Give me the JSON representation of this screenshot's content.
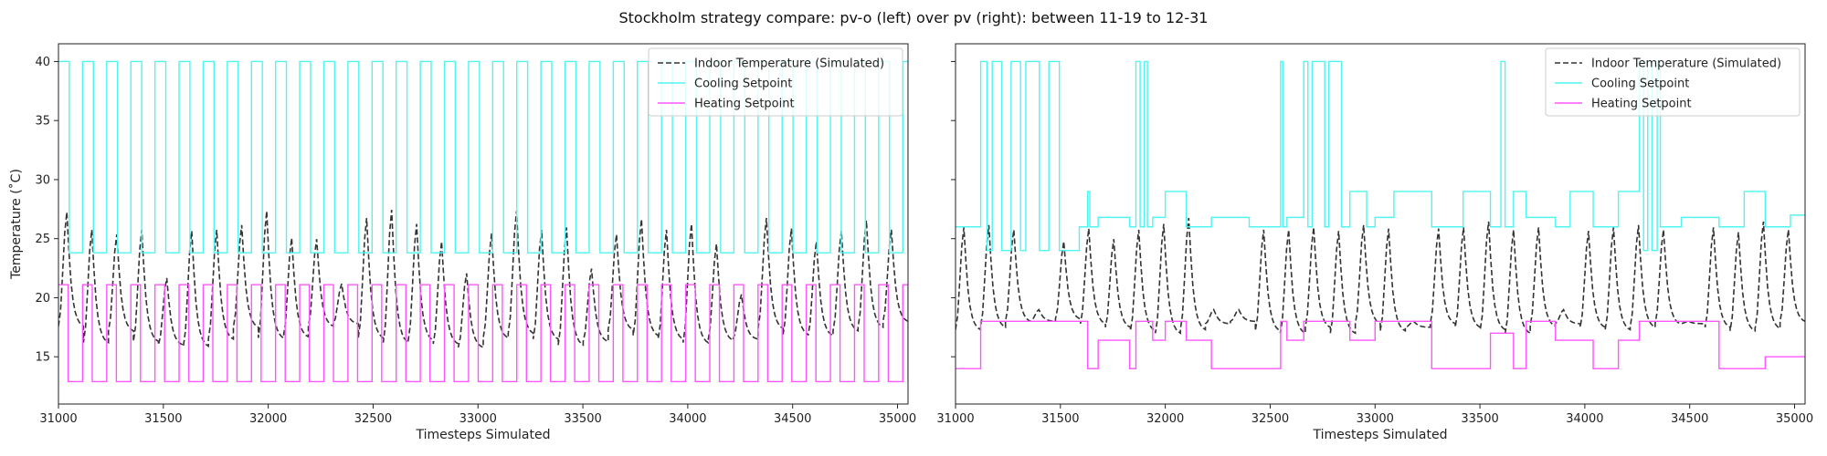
{
  "figure": {
    "title": "Stockholm strategy compare: pv-o (left) over pv (right): between 11-19 to 12-31"
  },
  "chart_data": [
    {
      "type": "line",
      "panel": "left",
      "xlabel": "Timesteps Simulated",
      "ylabel": "Temperature (˚C)",
      "xlim": [
        31000,
        35050
      ],
      "ylim": [
        11,
        41.5
      ],
      "xticks": [
        "31000",
        "31500",
        "32000",
        "32500",
        "33000",
        "33500",
        "34000",
        "34500",
        "35000"
      ],
      "yticks": [
        "15",
        "20",
        "25",
        "30",
        "35",
        "40"
      ],
      "grid": false,
      "legend_position": "top-right",
      "series": [
        {
          "name": "Indoor Temperature (Simulated)",
          "color": "#333333",
          "style": "dashed",
          "mode": "oscillating",
          "peaks": [
            27.3,
            25.8,
            25.4,
            25.8,
            21.7,
            25.7,
            25.8,
            26.2,
            27.4,
            25.1,
            25.0,
            21.2,
            26.8,
            27.5,
            26.3,
            24.8,
            22.1,
            25.5,
            27.4,
            25.8,
            26.0,
            22.5,
            25.4,
            26.7,
            25.8,
            26.3,
            24.6,
            20.3,
            26.8,
            25.9,
            24.8,
            25.7,
            26.6,
            25.8
          ],
          "troughs": [
            17.6,
            16.2,
            17.2,
            16.3,
            16.0,
            15.9,
            16.5,
            17.5,
            16.6,
            16.7,
            17.6,
            17.8,
            16.6,
            16.2,
            16.4,
            16.1,
            15.8,
            16.6,
            17.0,
            16.5,
            16.0,
            16.3,
            17.3,
            16.8,
            16.5,
            16.2,
            16.4,
            16.5,
            17.4,
            16.9,
            16.8,
            17.2,
            17.5,
            18.0
          ],
          "x_start": 31000,
          "x_end": 35050
        },
        {
          "name": "Cooling Setpoint",
          "color": "#4ff5f0",
          "style": "solid",
          "mode": "square",
          "high": 40,
          "low": 23.8,
          "period": 115,
          "duty": 0.45,
          "x_start": 31000,
          "x_end": 35050
        },
        {
          "name": "Heating Setpoint",
          "color": "#ff55ff",
          "style": "solid",
          "mode": "square",
          "high": 21.1,
          "low": 12.9,
          "period": 115,
          "duty": 0.4,
          "x_start": 31000,
          "x_end": 35050
        }
      ]
    },
    {
      "type": "line",
      "panel": "right",
      "xlabel": "Timesteps Simulated",
      "ylabel": "",
      "xlim": [
        31000,
        35050
      ],
      "ylim": [
        11,
        41.5
      ],
      "xticks": [
        "31000",
        "31500",
        "32000",
        "32500",
        "33000",
        "33500",
        "34000",
        "34500",
        "35000"
      ],
      "yticks": [],
      "grid": false,
      "legend_position": "top-right",
      "series": [
        {
          "name": "Indoor Temperature (Simulated)",
          "color": "#333333",
          "style": "dashed",
          "mode": "oscillating",
          "peaks": [
            26.0,
            26.2,
            25.8,
            19.0,
            24.8,
            25.9,
            25.0,
            25.8,
            26.3,
            26.8,
            19.0,
            19.0,
            25.8,
            25.8,
            26.0,
            25.7,
            26.2,
            25.9,
            18.0,
            25.9,
            26.0,
            26.5,
            25.8,
            26.0,
            19.0,
            25.7,
            26.0,
            26.2,
            25.8,
            18.0,
            26.0,
            25.6,
            26.5,
            25.8
          ],
          "troughs": [
            17.3,
            17.5,
            18.0,
            18.0,
            18.2,
            17.8,
            17.5,
            17.2,
            17.0,
            17.3,
            17.8,
            18.0,
            17.2,
            17.0,
            17.5,
            17.0,
            17.8,
            17.2,
            17.5,
            17.8,
            17.5,
            17.3,
            17.0,
            17.6,
            17.8,
            17.5,
            17.3,
            17.5,
            17.8,
            17.8,
            17.5,
            17.2,
            17.4,
            18.0
          ],
          "x_start": 31000,
          "x_end": 35050
        },
        {
          "name": "Cooling Setpoint",
          "color": "#4ff5f0",
          "style": "solid",
          "mode": "steps",
          "points": [
            [
              31000,
              26
            ],
            [
              31120,
              26
            ],
            [
              31120,
              40
            ],
            [
              31150,
              40
            ],
            [
              31150,
              24
            ],
            [
              31175,
              24
            ],
            [
              31175,
              40
            ],
            [
              31220,
              40
            ],
            [
              31220,
              24
            ],
            [
              31265,
              24
            ],
            [
              31265,
              40
            ],
            [
              31310,
              40
            ],
            [
              31310,
              24
            ],
            [
              31335,
              24
            ],
            [
              31335,
              40
            ],
            [
              31400,
              40
            ],
            [
              31400,
              24
            ],
            [
              31445,
              24
            ],
            [
              31445,
              40
            ],
            [
              31495,
              40
            ],
            [
              31495,
              24
            ],
            [
              31590,
              24
            ],
            [
              31590,
              26
            ],
            [
              31630,
              26
            ],
            [
              31630,
              29
            ],
            [
              31640,
              29
            ],
            [
              31640,
              26
            ],
            [
              31680,
              26
            ],
            [
              31680,
              26.8
            ],
            [
              31830,
              26.8
            ],
            [
              31830,
              26
            ],
            [
              31860,
              26
            ],
            [
              31860,
              40
            ],
            [
              31880,
              40
            ],
            [
              31880,
              26
            ],
            [
              31900,
              26
            ],
            [
              31900,
              40
            ],
            [
              31915,
              40
            ],
            [
              31915,
              26
            ],
            [
              31940,
              26
            ],
            [
              31940,
              26.8
            ],
            [
              32000,
              26.8
            ],
            [
              32000,
              29
            ],
            [
              32100,
              29
            ],
            [
              32100,
              26
            ],
            [
              32220,
              26
            ],
            [
              32220,
              26.8
            ],
            [
              32400,
              26.8
            ],
            [
              32400,
              26
            ],
            [
              32550,
              26
            ],
            [
              32550,
              40
            ],
            [
              32560,
              40
            ],
            [
              32560,
              26
            ],
            [
              32580,
              26
            ],
            [
              32580,
              26.8
            ],
            [
              32660,
              26.8
            ],
            [
              32660,
              40
            ],
            [
              32680,
              40
            ],
            [
              32680,
              26
            ],
            [
              32700,
              26
            ],
            [
              32700,
              40
            ],
            [
              32760,
              40
            ],
            [
              32760,
              26
            ],
            [
              32780,
              26
            ],
            [
              32780,
              40
            ],
            [
              32840,
              40
            ],
            [
              32840,
              26
            ],
            [
              32880,
              26
            ],
            [
              32880,
              29
            ],
            [
              32960,
              29
            ],
            [
              32960,
              26
            ],
            [
              33000,
              26
            ],
            [
              33000,
              26.8
            ],
            [
              33090,
              26.8
            ],
            [
              33090,
              29
            ],
            [
              33270,
              29
            ],
            [
              33270,
              26
            ],
            [
              33420,
              26
            ],
            [
              33420,
              29
            ],
            [
              33550,
              29
            ],
            [
              33550,
              26
            ],
            [
              33600,
              26
            ],
            [
              33600,
              40
            ],
            [
              33620,
              40
            ],
            [
              33620,
              26
            ],
            [
              33660,
              26
            ],
            [
              33660,
              29
            ],
            [
              33720,
              29
            ],
            [
              33720,
              26.8
            ],
            [
              33860,
              26.8
            ],
            [
              33860,
              26
            ],
            [
              33930,
              26
            ],
            [
              33930,
              29
            ],
            [
              34040,
              29
            ],
            [
              34040,
              26
            ],
            [
              34160,
              26
            ],
            [
              34160,
              29
            ],
            [
              34260,
              29
            ],
            [
              34260,
              40
            ],
            [
              34280,
              40
            ],
            [
              34280,
              24
            ],
            [
              34300,
              24
            ],
            [
              34300,
              40
            ],
            [
              34320,
              40
            ],
            [
              34320,
              24
            ],
            [
              34345,
              24
            ],
            [
              34345,
              40
            ],
            [
              34360,
              40
            ],
            [
              34360,
              26
            ],
            [
              34460,
              26
            ],
            [
              34460,
              26.8
            ],
            [
              34640,
              26.8
            ],
            [
              34640,
              26
            ],
            [
              34760,
              26
            ],
            [
              34760,
              29
            ],
            [
              34860,
              29
            ],
            [
              34860,
              26
            ],
            [
              34980,
              26
            ],
            [
              34980,
              27
            ],
            [
              35050,
              27
            ]
          ]
        },
        {
          "name": "Heating Setpoint",
          "color": "#ff55ff",
          "style": "solid",
          "mode": "steps",
          "points": [
            [
              31000,
              14
            ],
            [
              31120,
              14
            ],
            [
              31120,
              18
            ],
            [
              31630,
              18
            ],
            [
              31630,
              14
            ],
            [
              31680,
              14
            ],
            [
              31680,
              16.4
            ],
            [
              31830,
              16.4
            ],
            [
              31830,
              14
            ],
            [
              31860,
              14
            ],
            [
              31860,
              18
            ],
            [
              31940,
              18
            ],
            [
              31940,
              16.4
            ],
            [
              32000,
              16.4
            ],
            [
              32000,
              18
            ],
            [
              32100,
              18
            ],
            [
              32100,
              16.4
            ],
            [
              32220,
              16.4
            ],
            [
              32220,
              14
            ],
            [
              32550,
              14
            ],
            [
              32550,
              18
            ],
            [
              32580,
              18
            ],
            [
              32580,
              16.4
            ],
            [
              32660,
              16.4
            ],
            [
              32660,
              18
            ],
            [
              32880,
              18
            ],
            [
              32880,
              16.4
            ],
            [
              33000,
              16.4
            ],
            [
              33000,
              18
            ],
            [
              33270,
              18
            ],
            [
              33270,
              14
            ],
            [
              33550,
              14
            ],
            [
              33550,
              17
            ],
            [
              33660,
              17
            ],
            [
              33660,
              14
            ],
            [
              33720,
              14
            ],
            [
              33720,
              18
            ],
            [
              33860,
              18
            ],
            [
              33860,
              16.4
            ],
            [
              34040,
              16.4
            ],
            [
              34040,
              14
            ],
            [
              34160,
              14
            ],
            [
              34160,
              16.4
            ],
            [
              34260,
              16.4
            ],
            [
              34260,
              18
            ],
            [
              34460,
              18
            ],
            [
              34460,
              18
            ],
            [
              34640,
              18
            ],
            [
              34640,
              14
            ],
            [
              34860,
              14
            ],
            [
              34860,
              15
            ],
            [
              34980,
              15
            ],
            [
              34980,
              15
            ],
            [
              35050,
              15
            ]
          ]
        }
      ]
    }
  ]
}
